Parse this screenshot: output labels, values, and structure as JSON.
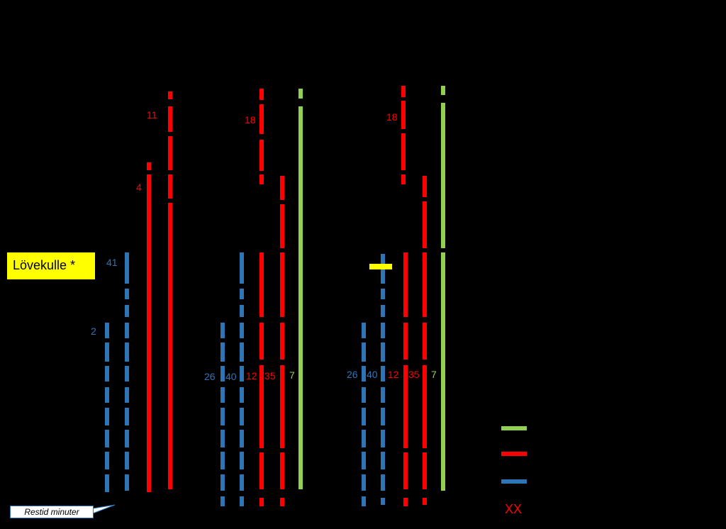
{
  "colors": {
    "background": "#000000",
    "blue": "#2e75b6",
    "red": "#ff0000",
    "green": "#92d050",
    "yellow": "#ffff00"
  },
  "place_label": "Lövekulle *",
  "restid_label": "Restid minuter",
  "route_labels": {
    "group1": {
      "l41": "41",
      "l2": "2",
      "l4": "4",
      "l11": "11"
    },
    "group2": {
      "l18": "18",
      "l26": "26",
      "l40": "40",
      "l12": "12",
      "l35": "35",
      "l7": "7"
    },
    "group3": {
      "l18": "18",
      "l26": "26",
      "l40": "40",
      "l12": "12",
      "l35": "35",
      "l7": "7"
    }
  },
  "legend": {
    "lines": [
      {
        "color": "green",
        "label": ""
      },
      {
        "color": "red",
        "label": ""
      },
      {
        "color": "blue",
        "label": ""
      }
    ],
    "xx_label": "XX"
  }
}
